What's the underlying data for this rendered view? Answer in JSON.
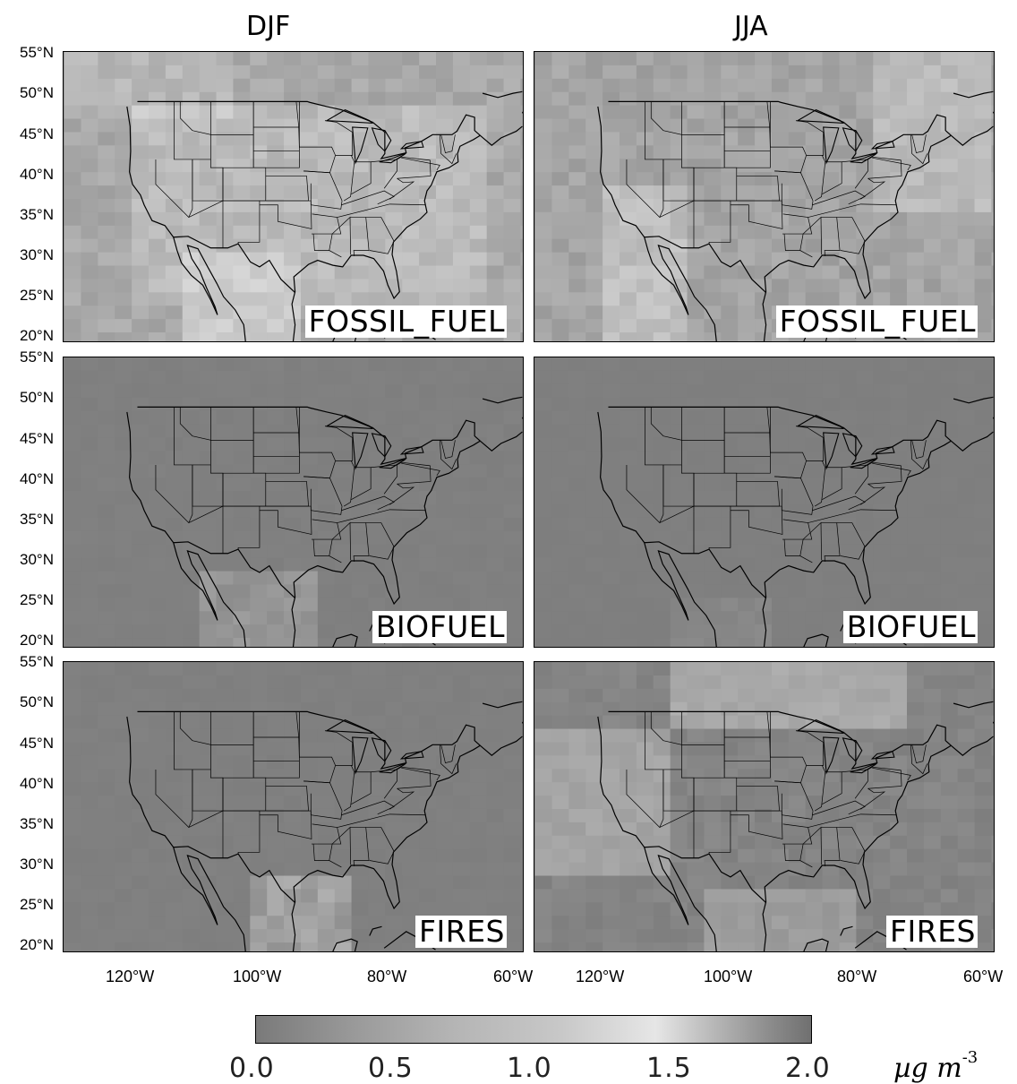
{
  "columns": [
    "DJF",
    "JJA"
  ],
  "rows": [
    "FOSSIL_FUEL",
    "BIOFUEL",
    "FIRES"
  ],
  "lat_labels": [
    "55°N",
    "50°N",
    "45°N",
    "40°N",
    "35°N",
    "30°N",
    "25°N",
    "20°N"
  ],
  "lon_labels": [
    "120°W",
    "100°W",
    "80°W",
    "60°W"
  ],
  "colorbar": {
    "ticks": [
      "0.0",
      "0.5",
      "1.0",
      "1.5",
      "2.0"
    ],
    "unit": "µg m",
    "unit_exp": "-3",
    "range": [
      0.0,
      2.0
    ]
  },
  "panels": [
    {
      "season": "DJF",
      "source": "FOSSIL_FUEL",
      "label": "FOSSIL_FUEL",
      "intensity": 0.55,
      "pattern": "ff_djf"
    },
    {
      "season": "JJA",
      "source": "FOSSIL_FUEL",
      "label": "FOSSIL_FUEL",
      "intensity": 0.5,
      "pattern": "ff_jja"
    },
    {
      "season": "DJF",
      "source": "BIOFUEL",
      "label": "BIOFUEL",
      "intensity": 0.1,
      "pattern": "bf_djf"
    },
    {
      "season": "JJA",
      "source": "BIOFUEL",
      "label": "BIOFUEL",
      "intensity": 0.05,
      "pattern": "bf_jja"
    },
    {
      "season": "DJF",
      "source": "FIRES",
      "label": "FIRES",
      "intensity": 0.15,
      "pattern": "fi_djf"
    },
    {
      "season": "JJA",
      "source": "FIRES",
      "label": "FIRES",
      "intensity": 0.45,
      "pattern": "fi_jja"
    }
  ]
}
